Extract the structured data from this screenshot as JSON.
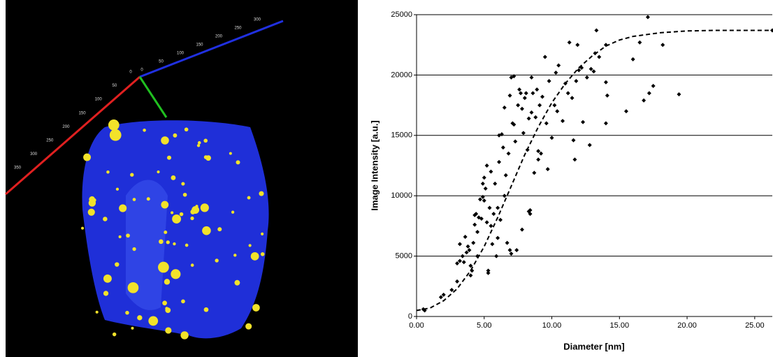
{
  "render": {
    "red_axis_labels": [
      "350",
      "300",
      "250",
      "200",
      "150",
      "100",
      "50",
      "0"
    ],
    "blue_axis_labels": [
      "0",
      "50",
      "100",
      "150",
      "200",
      "250",
      "300"
    ]
  },
  "chart_data": {
    "type": "scatter",
    "x_label": "Diameter [nm]",
    "y_label": "Image Intensity [a.u.]",
    "color": "#000000",
    "grid": true,
    "xlim": [
      0,
      26.3
    ],
    "ylim": [
      0,
      25000
    ],
    "xticks": [
      {
        "value": 0,
        "label": "0.00"
      },
      {
        "value": 5,
        "label": "5.00"
      },
      {
        "value": 10,
        "label": "10.00"
      },
      {
        "value": 15,
        "label": "15.00"
      },
      {
        "value": 20,
        "label": "20.00"
      },
      {
        "value": 25,
        "label": "25.00"
      }
    ],
    "yticks": [
      0,
      5000,
      10000,
      15000,
      20000,
      25000
    ],
    "x": [
      0.5,
      0.6,
      1.8,
      2.0,
      2.6,
      3.0,
      3.0,
      3.2,
      3.2,
      3.4,
      3.5,
      3.6,
      3.7,
      3.8,
      3.9,
      4.0,
      4.0,
      4.1,
      4.2,
      4.3,
      4.3,
      4.4,
      4.5,
      4.5,
      4.6,
      4.7,
      4.8,
      4.9,
      4.9,
      5.0,
      5.0,
      5.1,
      5.2,
      5.2,
      5.3,
      5.3,
      5.4,
      5.5,
      5.5,
      5.6,
      5.7,
      5.8,
      5.9,
      6.0,
      6.0,
      6.1,
      6.1,
      6.2,
      6.3,
      6.4,
      6.5,
      6.5,
      6.6,
      6.7,
      6.8,
      6.9,
      6.9,
      7.0,
      7.0,
      7.1,
      7.2,
      7.2,
      7.3,
      7.4,
      7.5,
      7.6,
      7.7,
      7.8,
      7.8,
      7.9,
      8.0,
      8.1,
      8.2,
      8.3,
      8.3,
      8.4,
      8.4,
      8.5,
      8.5,
      8.6,
      8.7,
      8.8,
      8.9,
      9.0,
      9.0,
      9.1,
      9.2,
      9.3,
      9.5,
      9.6,
      9.7,
      9.8,
      10.0,
      10.2,
      10.3,
      10.4,
      10.5,
      10.8,
      11.0,
      11.2,
      11.3,
      11.5,
      11.6,
      11.7,
      11.8,
      11.9,
      12.0,
      12.2,
      12.3,
      12.6,
      12.8,
      12.9,
      13.1,
      13.2,
      13.3,
      13.5,
      14.0,
      14.0,
      14.0,
      14.1,
      15.5,
      16.0,
      16.5,
      16.8,
      17.1,
      17.2,
      17.5,
      18.2,
      19.4,
      26.3
    ],
    "y": [
      600,
      500,
      1600,
      1800,
      2200,
      2900,
      4400,
      4600,
      6000,
      5000,
      4500,
      6600,
      5300,
      5800,
      5500,
      3400,
      4200,
      3800,
      6100,
      7600,
      8400,
      8500,
      5000,
      7000,
      8200,
      9700,
      8100,
      9900,
      11000,
      9600,
      11500,
      10600,
      12500,
      7800,
      3600,
      3800,
      9000,
      12000,
      7500,
      6000,
      8500,
      11000,
      5000,
      6500,
      9000,
      12800,
      15000,
      8000,
      15100,
      14000,
      10000,
      17300,
      11700,
      6100,
      13500,
      5500,
      18300,
      19800,
      5200,
      16000,
      19900,
      15900,
      14500,
      5500,
      17500,
      18800,
      18500,
      17200,
      7200,
      15200,
      18100,
      18500,
      13800,
      16400,
      8700,
      8500,
      8800,
      16900,
      19800,
      18500,
      11900,
      16500,
      18800,
      13000,
      13700,
      17500,
      13500,
      18200,
      21500,
      16000,
      12200,
      19500,
      14800,
      17500,
      20200,
      17000,
      20800,
      16200,
      19300,
      18500,
      22700,
      18100,
      14600,
      13000,
      19500,
      22500,
      20400,
      20600,
      16100,
      19800,
      14200,
      20500,
      20300,
      21800,
      23700,
      21500,
      22500,
      19400,
      16000,
      18300,
      17000,
      21300,
      22700,
      17900,
      24800,
      18500,
      19100,
      22500,
      18400,
      23700
    ],
    "fit_curve": {
      "style": "dashed",
      "x": [
        0,
        1,
        2,
        3,
        4,
        5,
        6,
        7,
        8,
        9,
        10,
        11,
        12,
        13,
        14,
        15,
        16,
        18,
        20,
        22,
        26.3
      ],
      "y": [
        500,
        700,
        1300,
        2300,
        3800,
        5800,
        8200,
        10800,
        13400,
        15700,
        17700,
        19300,
        20600,
        21600,
        22400,
        22900,
        23200,
        23500,
        23650,
        23700,
        23700
      ]
    }
  }
}
